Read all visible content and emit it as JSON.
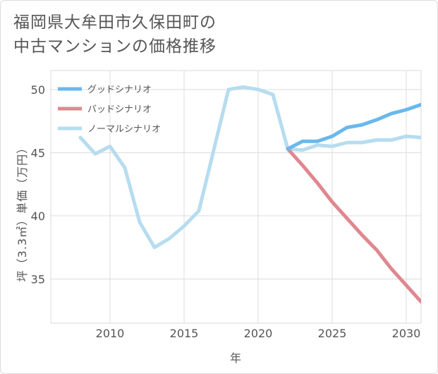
{
  "title_lines": [
    "福岡県大牟田市久保田町の",
    "中古マンションの価格推移"
  ],
  "chart_data": {
    "type": "line",
    "title": "福岡県大牟田市久保田町の中古マンションの価格推移",
    "xlabel": "年",
    "ylabel": "坪（3.3㎡）単価（万円）",
    "xlim": [
      2006,
      2031
    ],
    "ylim": [
      31.5,
      51.5
    ],
    "x_ticks": [
      2010,
      2015,
      2020,
      2025,
      2030
    ],
    "y_ticks": [
      35,
      40,
      45,
      50
    ],
    "grid": true,
    "legend_position": "top-left",
    "series": [
      {
        "name": "グッドシナリオ",
        "color": "#6ab8ec",
        "x": [
          2022,
          2023,
          2024,
          2025,
          2026,
          2027,
          2028,
          2029,
          2030,
          2031
        ],
        "y": [
          45.3,
          45.9,
          45.9,
          46.3,
          47.0,
          47.2,
          47.6,
          48.1,
          48.4,
          48.8
        ]
      },
      {
        "name": "バッドシナリオ",
        "color": "#e0878f",
        "x": [
          2022,
          2023,
          2024,
          2025,
          2026,
          2027,
          2028,
          2029,
          2030,
          2031
        ],
        "y": [
          45.3,
          44.0,
          42.6,
          41.1,
          39.8,
          38.5,
          37.3,
          35.8,
          34.5,
          33.2
        ]
      },
      {
        "name": "ノーマルシナリオ",
        "color": "#b6dcef",
        "x": [
          2008,
          2009,
          2010,
          2011,
          2012,
          2013,
          2014,
          2015,
          2016,
          2017,
          2018,
          2019,
          2020,
          2021,
          2022,
          2023,
          2024,
          2025,
          2026,
          2027,
          2028,
          2029,
          2030,
          2031
        ],
        "y": [
          46.2,
          44.9,
          45.5,
          43.8,
          39.5,
          37.5,
          38.2,
          39.2,
          40.4,
          45.2,
          50.0,
          50.2,
          50.0,
          49.6,
          45.3,
          45.2,
          45.6,
          45.5,
          45.8,
          45.8,
          46.0,
          46.0,
          46.3,
          46.2
        ]
      }
    ]
  }
}
